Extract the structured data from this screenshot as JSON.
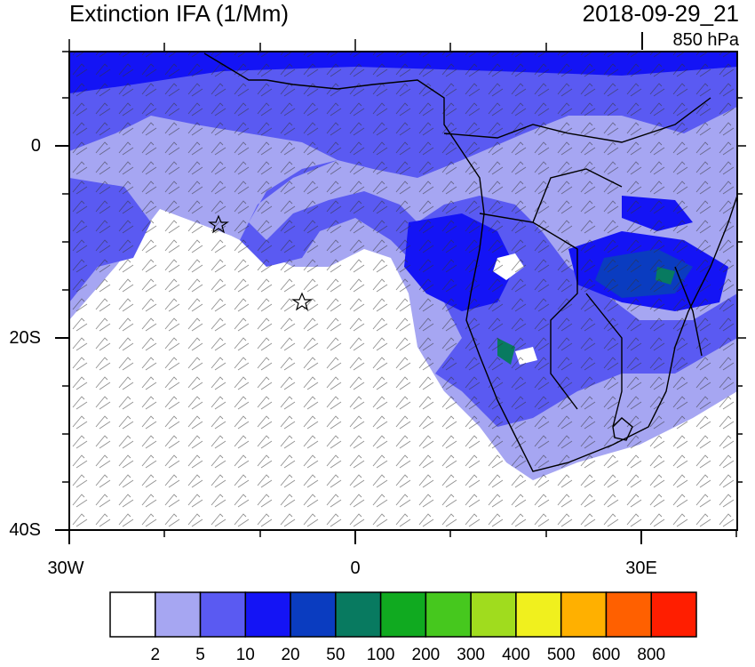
{
  "title": "Extinction IFA (1/Mm)",
  "datetime": "2018-09-29_21",
  "level": "850 hPa",
  "latitude_labels": [
    "0",
    "20S",
    "40S"
  ],
  "longitude_labels": [
    "30W",
    "0",
    "30E"
  ],
  "colorbar": {
    "labels": [
      "2",
      "5",
      "10",
      "20",
      "50",
      "100",
      "200",
      "300",
      "400",
      "500",
      "600",
      "800"
    ],
    "colors": [
      "#ffffff",
      "#a6a6f2",
      "#5a5af2",
      "#1414f5",
      "#0a3cc0",
      "#087a60",
      "#10aa20",
      "#46c81e",
      "#a0dc1e",
      "#f0f01e",
      "#ffb000",
      "#ff6000",
      "#ff1e00"
    ]
  },
  "markers": [
    "star",
    "star"
  ]
}
